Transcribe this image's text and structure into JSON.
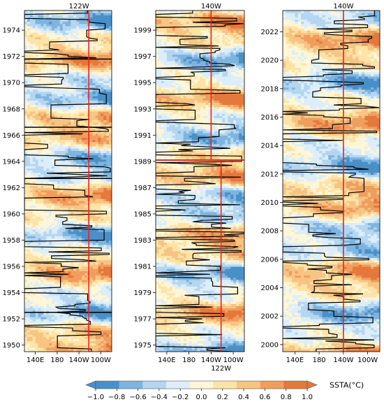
{
  "colors": {
    "palette": [
      "#4a90c8",
      "#7eb5e0",
      "#b4d6f0",
      "#dceef9",
      "#fdf6d7",
      "#fde3a6",
      "#f7c483",
      "#ef9e5e",
      "#e5783c"
    ],
    "line": "#000000",
    "marker": "#e8231f"
  },
  "chart_data": [
    {
      "type": "heatmap",
      "panel": "left",
      "top_label": "122W",
      "bottom_label": "",
      "xticks": [
        "140E",
        "180",
        "140W",
        "100W"
      ],
      "xlim": [
        120,
        280
      ],
      "ylim": [
        1950,
        1976
      ],
      "yticks": [
        "1950",
        "1952",
        "1954",
        "1956",
        "1958",
        "1960",
        "1962",
        "1964",
        "1966",
        "1968",
        "1970",
        "1972",
        "1974"
      ],
      "marker_line": [
        {
          "from": 1950,
          "to": 1976,
          "lon": 238
        }
      ],
      "horizontal_marks": [
        1953.0,
        1963.2,
        1967.1,
        1972.3
      ],
      "seed": 11
    },
    {
      "type": "heatmap",
      "panel": "middle",
      "top_label": "140W",
      "bottom_label": "122W",
      "xticks": [
        "140E",
        "180",
        "140W",
        "100W"
      ],
      "xlim": [
        120,
        280
      ],
      "ylim": [
        1975,
        2001
      ],
      "yticks": [
        "1975",
        "1977",
        "1979",
        "1981",
        "1983",
        "1985",
        "1987",
        "1989",
        "1991",
        "1993",
        "1995",
        "1997",
        "1999"
      ],
      "marker_line": [
        {
          "from": 1975,
          "to": 1989.6,
          "lon": 238
        },
        {
          "from": 1989.6,
          "to": 2001,
          "lon": 220
        }
      ],
      "horizontal_marks": [
        1989.6
      ],
      "seed": 23
    },
    {
      "type": "heatmap",
      "panel": "right",
      "top_label": "140W",
      "bottom_label": "",
      "xticks": [
        "140E",
        "180",
        "140W",
        "100W"
      ],
      "xlim": [
        120,
        280
      ],
      "ylim": [
        2000,
        2024
      ],
      "yticks": [
        "2000",
        "2002",
        "2004",
        "2006",
        "2008",
        "2010",
        "2012",
        "2014",
        "2016",
        "2018",
        "2020",
        "2022"
      ],
      "marker_line": [
        {
          "from": 2000,
          "to": 2024,
          "lon": 220
        }
      ],
      "horizontal_marks": [],
      "seed": 37
    }
  ],
  "colorbar": {
    "label": "SSTA(°C)",
    "ticks": [
      "−1.0",
      "−0.8",
      "−0.6",
      "−0.4",
      "−0.2",
      "0.0",
      "0.2",
      "0.4",
      "0.6",
      "0.8",
      "1.0"
    ],
    "range": [
      -1.0,
      1.0
    ]
  }
}
